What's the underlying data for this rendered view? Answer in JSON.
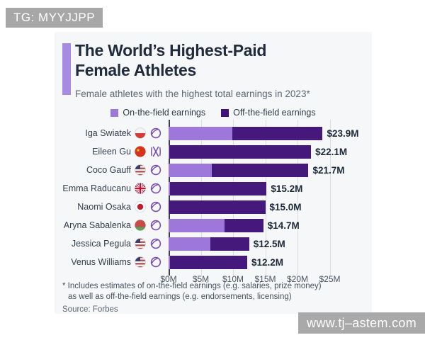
{
  "watermarks": {
    "top": "TG: MYYJJPP",
    "bottom": "www.tj–astem.com"
  },
  "header": {
    "title_line1": "The World’s Highest-Paid",
    "title_line2": "Female Athletes",
    "subtitle": "Female athletes with the highest total earnings in 2023*"
  },
  "legend": [
    {
      "label": "On-the-field earnings",
      "color": "#9e77da"
    },
    {
      "label": "Off-the-field earnings",
      "color": "#3f1377"
    }
  ],
  "chart_data": {
    "type": "bar",
    "orientation": "horizontal",
    "stacked": true,
    "unit": "million USD",
    "categories": [
      "Iga Swiatek",
      "Eileen Gu",
      "Coco Gauff",
      "Emma Raducanu",
      "Naomi Osaka",
      "Aryna Sabalenka",
      "Jessica Pegula",
      "Venus Williams"
    ],
    "series": [
      {
        "name": "On-the-field earnings",
        "color": "#9e77da",
        "values": [
          9.9,
          0.1,
          6.7,
          0.2,
          0.0,
          8.7,
          6.5,
          0.2
        ]
      },
      {
        "name": "Off-the-field earnings",
        "color": "#45187c",
        "values": [
          14.0,
          22.0,
          15.0,
          15.0,
          15.0,
          6.0,
          6.0,
          12.0
        ]
      }
    ],
    "total_labels": [
      "$23.9M",
      "$22.1M",
      "$21.7M",
      "$15.2M",
      "$15.0M",
      "$14.7M",
      "$12.5M",
      "$12.2M"
    ],
    "flag_icons": [
      "flag-poland",
      "flag-china",
      "flag-usa",
      "flag-uk",
      "flag-japan",
      "flag-belarus",
      "flag-usa",
      "flag-usa"
    ],
    "sport_icons": [
      "tennis-ball-icon",
      "crossed-skis-icon",
      "tennis-ball-icon",
      "tennis-ball-icon",
      "tennis-ball-icon",
      "tennis-ball-icon",
      "tennis-ball-icon",
      "tennis-ball-icon"
    ],
    "x_ticks": [
      "$0M",
      "$5M",
      "$10M",
      "$15M",
      "$20M",
      "$25M"
    ],
    "xlim": [
      0,
      25
    ],
    "grid": true,
    "legend_position": "top"
  },
  "footnote": {
    "line1": "* Includes estimates of on-the-field earnings (e.g. salaries, prize money)",
    "line2": "as well as off-the-field earnings (e.g. endorsements, licensing)"
  },
  "source": "Source: Forbes",
  "colors": {
    "accent_bar": "#a78ae1",
    "card_bg": "#f5f7f9",
    "on_field": "#9e77da",
    "off_field": "#45187c",
    "gridline": "#d9dde3",
    "axis_baseline": "#3a4049",
    "title_text": "#202b3b",
    "icon_purple": "#7a4db2",
    "watermark_bg": "#a7a7a7"
  }
}
